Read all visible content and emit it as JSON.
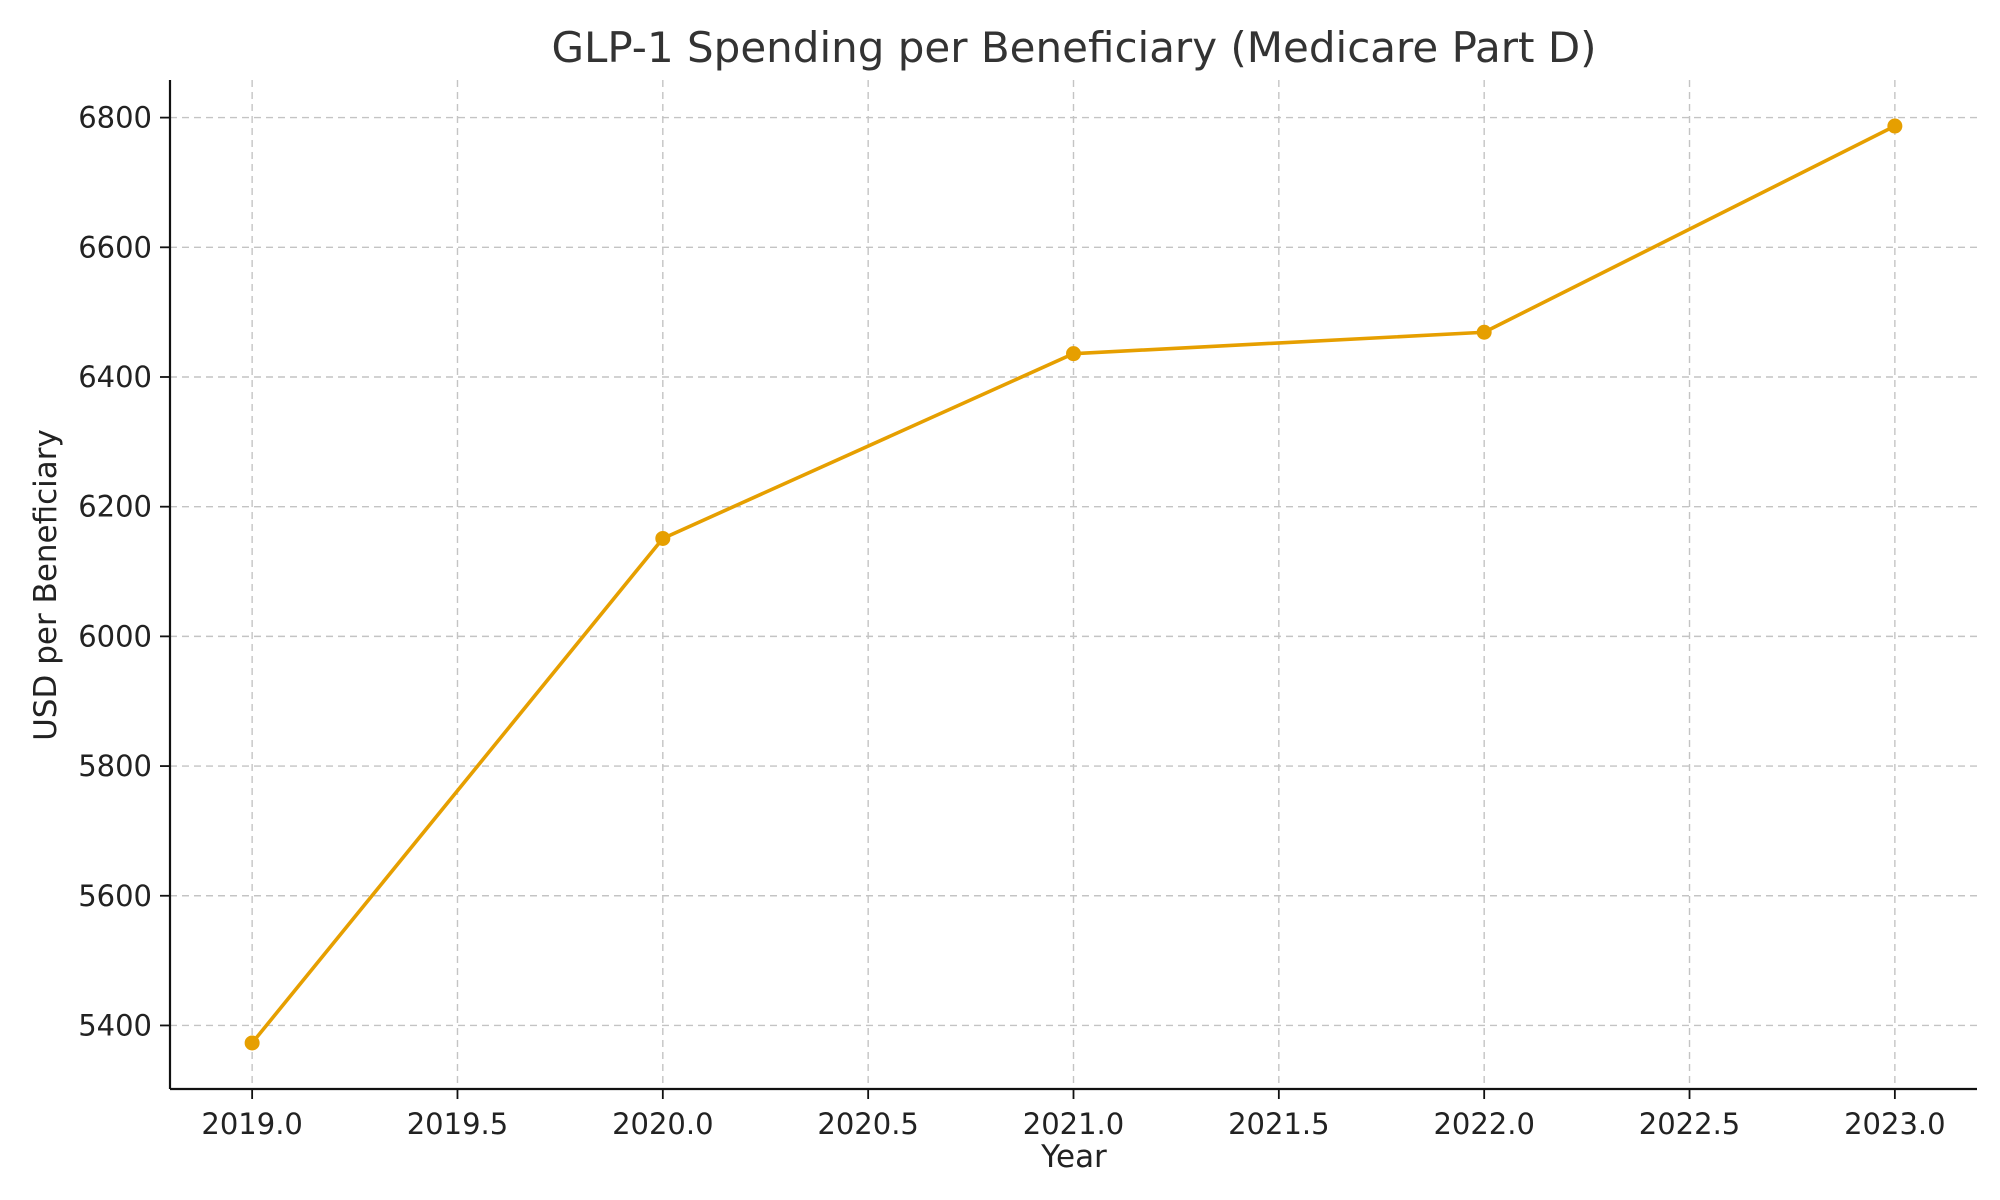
{
  "chart_data": {
    "type": "line",
    "title": "GLP-1 Spending per Beneficiary (Medicare Part D)",
    "xlabel": "Year",
    "ylabel": "USD per Beneficiary",
    "x": [
      2019,
      2020,
      2021,
      2022,
      2023
    ],
    "series": [
      {
        "values": [
          5373,
          6151,
          6436,
          6469,
          6787
        ],
        "color": "#E69F00"
      }
    ],
    "xlim": [
      2018.8,
      2023.2
    ],
    "ylim": [
      5302,
      6858
    ],
    "x_ticks": [
      2019.0,
      2019.5,
      2020.0,
      2020.5,
      2021.0,
      2021.5,
      2022.0,
      2022.5,
      2023.0
    ],
    "x_tick_labels": [
      "2019.0",
      "2019.5",
      "2020.0",
      "2020.5",
      "2021.0",
      "2021.5",
      "2022.0",
      "2022.5",
      "2023.0"
    ],
    "y_ticks": [
      5400,
      5600,
      5800,
      6000,
      6200,
      6400,
      6600,
      6800
    ],
    "y_tick_labels": [
      "5400",
      "5600",
      "5800",
      "6000",
      "6200",
      "6400",
      "6600",
      "6800"
    ],
    "grid": true,
    "markers": true
  }
}
